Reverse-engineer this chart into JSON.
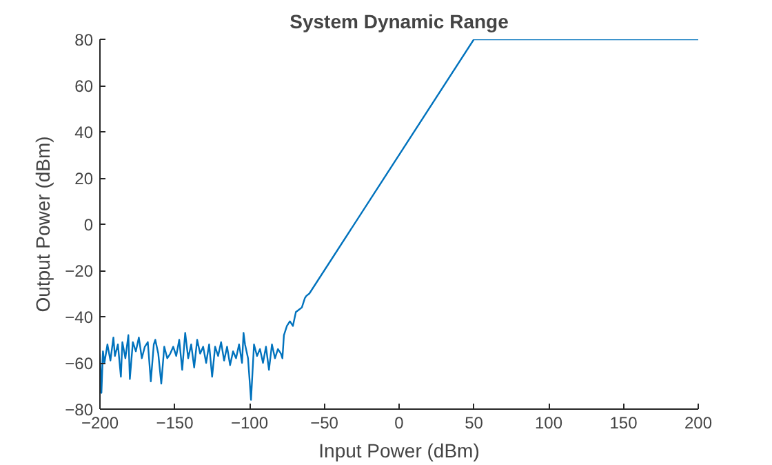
{
  "chart_data": {
    "type": "line",
    "title": "System Dynamic Range",
    "xlabel": "Input Power (dBm)",
    "ylabel": "Output Power (dBm)",
    "xlim": [
      -200,
      200
    ],
    "ylim": [
      -80,
      80
    ],
    "xticks": [
      -200,
      -150,
      -100,
      -50,
      0,
      50,
      100,
      150,
      200
    ],
    "yticks": [
      -80,
      -60,
      -40,
      -20,
      0,
      20,
      40,
      60,
      80
    ],
    "grid": false,
    "series": [
      {
        "color": "#0072bd",
        "x": [
          -200,
          -199,
          -198,
          -197,
          -195,
          -193,
          -191,
          -190,
          -188,
          -186,
          -185,
          -183,
          -181,
          -180,
          -178,
          -176,
          -174,
          -172,
          -170,
          -168,
          -166,
          -164,
          -163,
          -161,
          -159,
          -157,
          -155,
          -153,
          -151,
          -149,
          -147,
          -145,
          -143,
          -141,
          -139,
          -137,
          -135,
          -133,
          -131,
          -129,
          -127,
          -125,
          -123,
          -121,
          -119,
          -117,
          -115,
          -113,
          -111,
          -109,
          -107,
          -105,
          -104,
          -103,
          -101,
          -99,
          -97,
          -95,
          -93,
          -91,
          -89,
          -87,
          -85,
          -83,
          -81,
          -79,
          -78,
          -77,
          -75,
          -73,
          -71,
          -69,
          -67,
          -65,
          -63,
          -62,
          -60,
          50,
          200
        ],
        "values": [
          -56,
          -73,
          -55,
          -60,
          -52,
          -59,
          -49,
          -57,
          -52,
          -66,
          -51,
          -58,
          -48,
          -67,
          -51,
          -55,
          -49,
          -58,
          -53,
          -51,
          -68,
          -52,
          -50,
          -56,
          -69,
          -53,
          -58,
          -56,
          -53,
          -57,
          -50,
          -63,
          -47,
          -58,
          -52,
          -62,
          -50,
          -56,
          -53,
          -60,
          -52,
          -66,
          -53,
          -57,
          -51,
          -59,
          -53,
          -61,
          -55,
          -58,
          -52,
          -60,
          -47,
          -52,
          -58,
          -76,
          -52,
          -57,
          -54,
          -60,
          -53,
          -63,
          -52,
          -58,
          -54,
          -56,
          -58,
          -48,
          -44,
          -42,
          -44,
          -38,
          -37,
          -36,
          -32,
          -31,
          -30,
          80,
          80
        ]
      }
    ]
  }
}
